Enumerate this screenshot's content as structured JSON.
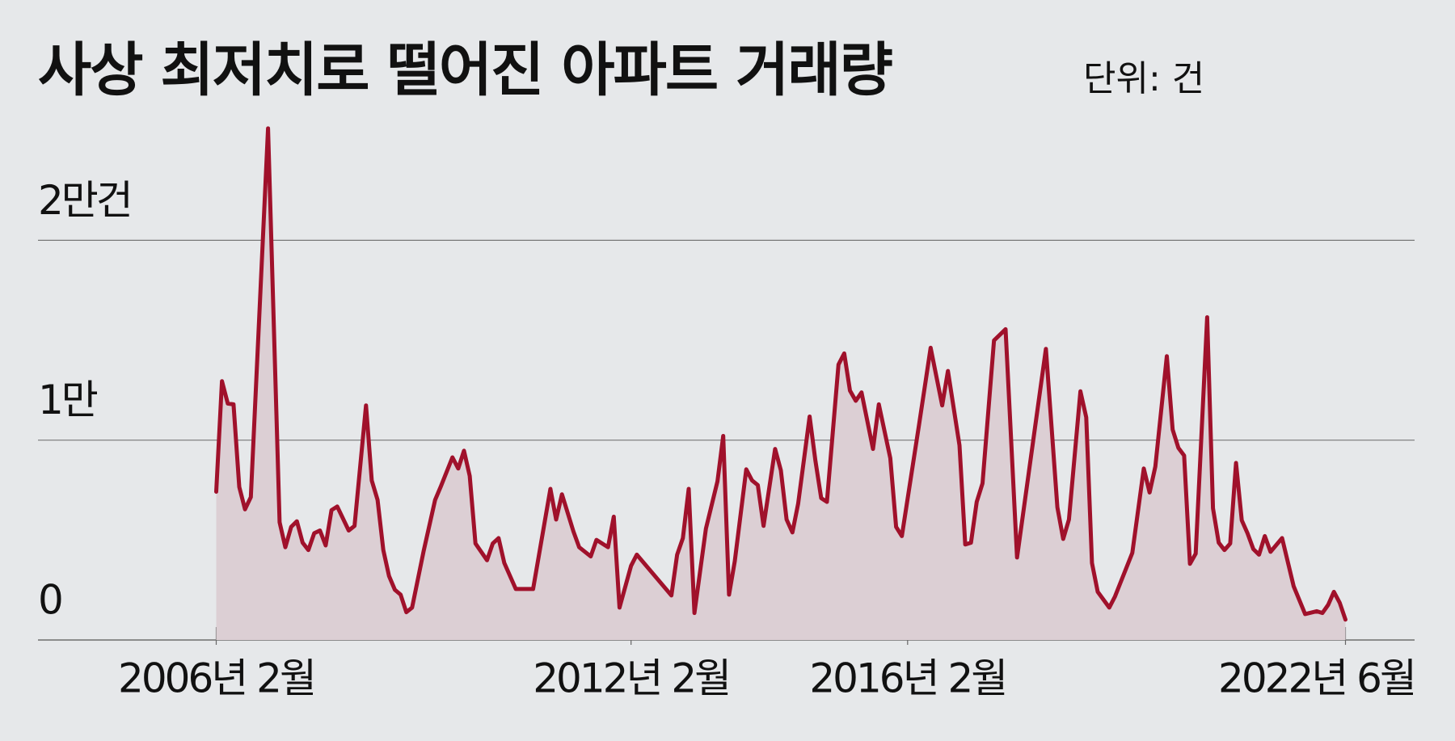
{
  "chart_data": {
    "type": "line",
    "title": "사상 최저치로 떨어진 아파트 거래량",
    "subtitle": "단위: 건",
    "x": [
      "2006-02",
      "2006-03",
      "2006-04",
      "2006-05",
      "2006-06",
      "2006-07",
      "2006-08",
      "2006-11",
      "2007-01",
      "2007-02",
      "2007-03",
      "2007-04",
      "2007-05",
      "2007-06",
      "2007-07",
      "2007-08",
      "2007-09",
      "2007-10",
      "2007-11",
      "2008-01",
      "2008-02",
      "2008-04",
      "2008-05",
      "2008-06",
      "2008-07",
      "2008-08",
      "2008-09",
      "2008-10",
      "2008-11",
      "2008-12",
      "2009-02",
      "2009-04",
      "2009-05",
      "2009-07",
      "2009-08",
      "2009-09",
      "2009-10",
      "2009-11",
      "2010-01",
      "2010-02",
      "2010-03",
      "2010-04",
      "2010-06",
      "2010-09",
      "2010-12",
      "2011-01",
      "2011-02",
      "2011-04",
      "2011-05",
      "2011-07",
      "2011-08",
      "2011-10",
      "2011-11",
      "2011-12",
      "2012-02",
      "2012-03",
      "2012-09",
      "2012-10",
      "2012-11",
      "2012-12",
      "2013-01",
      "2013-03",
      "2013-05",
      "2013-06",
      "2013-07",
      "2013-08",
      "2013-10",
      "2013-11",
      "2013-12",
      "2014-01",
      "2014-03",
      "2014-04",
      "2014-05",
      "2014-06",
      "2014-07",
      "2014-09",
      "2014-10",
      "2014-11",
      "2014-12",
      "2015-02",
      "2015-03",
      "2015-04",
      "2015-05",
      "2015-06",
      "2015-08",
      "2015-09",
      "2015-11",
      "2015-12",
      "2016-01",
      "2016-04",
      "2016-05",
      "2016-06",
      "2016-08",
      "2016-09",
      "2016-11",
      "2016-12",
      "2017-01",
      "2017-02",
      "2017-03",
      "2017-05",
      "2017-07",
      "2017-09",
      "2018-02",
      "2018-04",
      "2018-05",
      "2018-06",
      "2018-08",
      "2018-09",
      "2018-10",
      "2018-11",
      "2019-01",
      "2019-02",
      "2019-05",
      "2019-07",
      "2019-08",
      "2019-09",
      "2019-11",
      "2019-12",
      "2020-01",
      "2020-02",
      "2020-03",
      "2020-04",
      "2020-06",
      "2020-07",
      "2020-08",
      "2020-09",
      "2020-10",
      "2020-11",
      "2020-12",
      "2021-01",
      "2021-02",
      "2021-03",
      "2021-04",
      "2021-05",
      "2021-07",
      "2021-09",
      "2021-11",
      "2022-01",
      "2022-02",
      "2022-03",
      "2022-04",
      "2022-05",
      "2022-06"
    ],
    "series": [
      {
        "name": "아파트 거래량",
        "color": "#a0112b",
        "fill": "#dccfd4",
        "values": [
          7420,
          12950,
          11830,
          11790,
          7660,
          6540,
          7150,
          25600,
          5890,
          4640,
          5660,
          5940,
          4870,
          4500,
          5340,
          5480,
          4730,
          6500,
          6680,
          5480,
          5710,
          11740,
          7980,
          7010,
          4500,
          3200,
          2510,
          2270,
          1390,
          1620,
          4450,
          7010,
          7700,
          9140,
          8580,
          9470,
          8210,
          4830,
          3990,
          4830,
          5100,
          3850,
          2550,
          2550,
          7560,
          6030,
          7290,
          5430,
          4640,
          4180,
          5010,
          4640,
          6170,
          1620,
          3710,
          4270,
          2230,
          4270,
          5100,
          7560,
          1350,
          5570,
          7940,
          10210,
          2270,
          3940,
          8540,
          7980,
          7750,
          5710,
          9560,
          8490,
          6030,
          5380,
          6820,
          11180,
          8960,
          7100,
          6910,
          13780,
          14340,
          12480,
          11970,
          12390,
          9560,
          11790,
          9100,
          5660,
          5200,
          10810,
          12710,
          14620,
          11740,
          13460,
          9740,
          4780,
          4870,
          6910,
          7840,
          14990,
          15550,
          4130,
          14570,
          6640,
          5060,
          6030,
          12440,
          11140,
          3850,
          2410,
          1620,
          2180,
          4360,
          8580,
          7380,
          8680,
          14200,
          10530,
          9610,
          9230,
          3810,
          4320,
          16150,
          6590,
          4870,
          4500,
          4830,
          8860,
          5990,
          5340,
          4550,
          4270,
          5200,
          4410,
          5100,
          2690,
          1300,
          1440,
          1350,
          1760,
          2410,
          1860,
          1020
        ]
      }
    ],
    "xlim": [
      "2006-02",
      "2022-06"
    ],
    "xticks": [
      {
        "value": "2006-02",
        "label": "2006년 2월"
      },
      {
        "value": "2012-02",
        "label": "2012년 2월"
      },
      {
        "value": "2016-02",
        "label": "2016년 2월"
      },
      {
        "value": "2022-06",
        "label": "2022년 6월"
      }
    ],
    "ylim": [
      0,
      26000
    ],
    "yticks": [
      0,
      {
        "value": 10000,
        "label": "1만"
      },
      {
        "value": 20000,
        "label": "2만건"
      }
    ],
    "grid": true
  }
}
